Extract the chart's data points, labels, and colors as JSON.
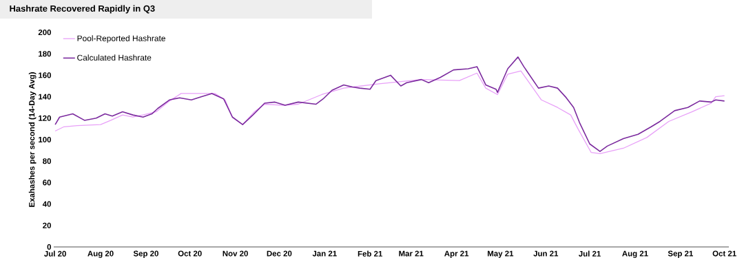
{
  "chart_data": {
    "type": "line",
    "title": "Hashrate Recovered Rapidly in Q3",
    "ylabel": "Exahashes per second (14-Day Avg)",
    "xlim": [
      "2020-06-30",
      "2021-10-04"
    ],
    "xticks": [
      {
        "value": "2020-07-01",
        "label": "Jul 20"
      },
      {
        "value": "2020-08-01",
        "label": "Aug 20"
      },
      {
        "value": "2020-09-01",
        "label": "Sep 20"
      },
      {
        "value": "2020-10-01",
        "label": "Oct 20"
      },
      {
        "value": "2020-11-01",
        "label": "Nov 20"
      },
      {
        "value": "2020-12-01",
        "label": "Dec 20"
      },
      {
        "value": "2021-01-01",
        "label": "Jan 21"
      },
      {
        "value": "2021-02-01",
        "label": "Feb 21"
      },
      {
        "value": "2021-03-01",
        "label": "Mar 21"
      },
      {
        "value": "2021-04-01",
        "label": "Apr 21"
      },
      {
        "value": "2021-05-01",
        "label": "May 21"
      },
      {
        "value": "2021-06-01",
        "label": "Jun 21"
      },
      {
        "value": "2021-07-01",
        "label": "Jul 21"
      },
      {
        "value": "2021-08-01",
        "label": "Aug 21"
      },
      {
        "value": "2021-09-01",
        "label": "Sep 21"
      },
      {
        "value": "2021-10-01",
        "label": "Oct 21"
      }
    ],
    "ylim": [
      0,
      200
    ],
    "yticks": [
      0,
      20,
      40,
      60,
      80,
      100,
      120,
      140,
      160,
      180,
      200
    ],
    "grid": false,
    "legend": "top left",
    "marker": "none",
    "line_style": "solid",
    "series": [
      {
        "name": "Pool-Reported Hashrate",
        "color": "#e8a0f8",
        "x": [
          "2020-07-01",
          "2020-07-07",
          "2020-07-16",
          "2020-08-01",
          "2020-08-08",
          "2020-08-16",
          "2020-08-23",
          "2020-08-30",
          "2020-09-08",
          "2020-09-17",
          "2020-09-25",
          "2020-10-18",
          "2020-10-25",
          "2020-10-30",
          "2020-11-06",
          "2020-11-14",
          "2020-11-21",
          "2020-12-04",
          "2020-12-14",
          "2020-12-30",
          "2021-01-14",
          "2021-02-07",
          "2021-03-08",
          "2021-04-03",
          "2021-04-15",
          "2021-04-21",
          "2021-04-29",
          "2021-05-06",
          "2021-05-15",
          "2021-05-29",
          "2021-06-09",
          "2021-06-18",
          "2021-06-23",
          "2021-07-02",
          "2021-07-08",
          "2021-07-24",
          "2021-08-09",
          "2021-08-24",
          "2021-09-09",
          "2021-09-22",
          "2021-09-25",
          "2021-10-01"
        ],
        "values": [
          108,
          112,
          113,
          114,
          118,
          123,
          121,
          123,
          126,
          136,
          143,
          143,
          137,
          121,
          114,
          126,
          133,
          132,
          133,
          142,
          148,
          152,
          156,
          155,
          162,
          148,
          142,
          161,
          164,
          137,
          130,
          123,
          110,
          88,
          87,
          92,
          102,
          117,
          126,
          134,
          140,
          141
        ]
      },
      {
        "name": "Calculated Hashrate",
        "color": "#7b2a9e",
        "x": [
          "2020-07-01",
          "2020-07-04",
          "2020-07-13",
          "2020-07-21",
          "2020-07-29",
          "2020-08-04",
          "2020-08-09",
          "2020-08-16",
          "2020-08-23",
          "2020-08-30",
          "2020-09-05",
          "2020-09-09",
          "2020-09-17",
          "2020-09-24",
          "2020-10-02",
          "2020-10-09",
          "2020-10-16",
          "2020-10-24",
          "2020-10-30",
          "2020-11-06",
          "2020-11-13",
          "2020-11-21",
          "2020-11-28",
          "2020-12-05",
          "2020-12-14",
          "2020-12-26",
          "2020-12-31",
          "2021-01-06",
          "2021-01-14",
          "2021-01-20",
          "2021-01-25",
          "2021-02-01",
          "2021-02-05",
          "2021-02-15",
          "2021-02-22",
          "2021-02-26",
          "2021-03-08",
          "2021-03-13",
          "2021-03-21",
          "2021-03-30",
          "2021-04-09",
          "2021-04-15",
          "2021-04-21",
          "2021-04-28",
          "2021-04-29",
          "2021-05-06",
          "2021-05-13",
          "2021-05-17",
          "2021-05-27",
          "2021-06-03",
          "2021-06-09",
          "2021-06-15",
          "2021-06-20",
          "2021-06-24",
          "2021-07-01",
          "2021-07-08",
          "2021-07-13",
          "2021-07-24",
          "2021-08-03",
          "2021-08-12",
          "2021-08-18",
          "2021-08-28",
          "2021-09-06",
          "2021-09-14",
          "2021-09-22",
          "2021-09-25",
          "2021-10-01"
        ],
        "values": [
          114,
          121,
          124,
          118,
          120,
          124,
          122,
          126,
          123,
          121,
          124,
          129,
          137,
          139,
          137,
          140,
          143,
          138,
          121,
          114,
          123,
          134,
          135,
          132,
          135,
          133,
          138,
          146,
          151,
          149,
          148,
          147,
          155,
          160,
          150,
          153,
          156,
          153,
          158,
          165,
          166,
          168,
          151,
          147,
          144,
          166,
          177,
          168,
          148,
          150,
          148,
          139,
          130,
          116,
          96,
          89,
          94,
          101,
          105,
          112,
          117,
          127,
          130,
          136,
          135,
          137,
          136
        ]
      }
    ]
  }
}
